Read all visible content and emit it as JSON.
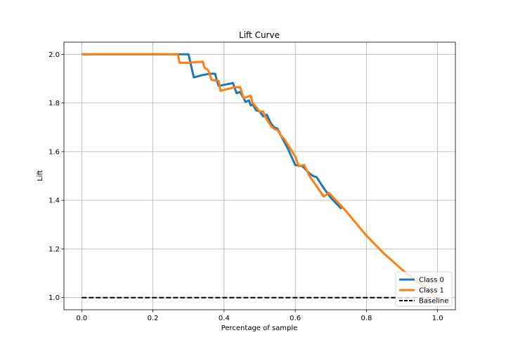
{
  "chart_data": {
    "type": "line",
    "title": "Lift Curve",
    "xlabel": "Percentage of sample",
    "ylabel": "Lift",
    "xlim": [
      -0.05,
      1.05
    ],
    "ylim": [
      0.95,
      2.05
    ],
    "xticks": [
      0.0,
      0.2,
      0.4,
      0.6,
      0.8,
      1.0
    ],
    "xtick_labels": [
      "0.0",
      "0.2",
      "0.4",
      "0.6",
      "0.8",
      "1.0"
    ],
    "yticks": [
      1.0,
      1.2,
      1.4,
      1.6,
      1.8,
      2.0
    ],
    "ytick_labels": [
      "1.0",
      "1.2",
      "1.4",
      "1.6",
      "1.8",
      "2.0"
    ],
    "grid": true,
    "legend_position": "bottom-right",
    "series": [
      {
        "name": "Class 0",
        "color": "#1f77b4",
        "style": "solid",
        "x": [
          0.0,
          0.3,
          0.315,
          0.34,
          0.36,
          0.375,
          0.38,
          0.385,
          0.425,
          0.435,
          0.445,
          0.455,
          0.46,
          0.47,
          0.475,
          0.48,
          0.49,
          0.5,
          0.51,
          0.52,
          0.53,
          0.54,
          0.55,
          0.56,
          0.58,
          0.6,
          0.62,
          0.64,
          0.65,
          0.66,
          0.68,
          0.7,
          0.73
        ],
        "y": [
          2.0,
          2.0,
          1.905,
          1.915,
          1.92,
          1.92,
          1.89,
          1.87,
          1.882,
          1.84,
          1.845,
          1.82,
          1.805,
          1.81,
          1.79,
          1.795,
          1.77,
          1.765,
          1.745,
          1.752,
          1.72,
          1.7,
          1.695,
          1.665,
          1.61,
          1.545,
          1.54,
          1.51,
          1.5,
          1.495,
          1.45,
          1.41,
          1.365
        ]
      },
      {
        "name": "Class 1",
        "color": "#ff7f0e",
        "style": "solid",
        "x": [
          0.0,
          0.27,
          0.275,
          0.3,
          0.34,
          0.345,
          0.355,
          0.365,
          0.385,
          0.39,
          0.43,
          0.445,
          0.455,
          0.465,
          0.475,
          0.48,
          0.5,
          0.51,
          0.515,
          0.525,
          0.535,
          0.545,
          0.55,
          0.56,
          0.57,
          0.6,
          0.61,
          0.625,
          0.63,
          0.64,
          0.68,
          0.695,
          0.74,
          0.8,
          0.85,
          0.9,
          0.95,
          0.99
        ],
        "y": [
          2.0,
          2.0,
          1.965,
          1.965,
          1.97,
          1.945,
          1.935,
          1.895,
          1.89,
          1.85,
          1.865,
          1.865,
          1.82,
          1.825,
          1.83,
          1.8,
          1.765,
          1.765,
          1.745,
          1.72,
          1.7,
          1.69,
          1.69,
          1.665,
          1.65,
          1.58,
          1.54,
          1.545,
          1.53,
          1.5,
          1.415,
          1.43,
          1.36,
          1.255,
          1.18,
          1.115,
          1.055,
          1.01
        ]
      },
      {
        "name": "Baseline",
        "color": "#000000",
        "style": "dashed",
        "x": [
          0.0,
          1.0
        ],
        "y": [
          1.0,
          1.0
        ]
      }
    ]
  }
}
